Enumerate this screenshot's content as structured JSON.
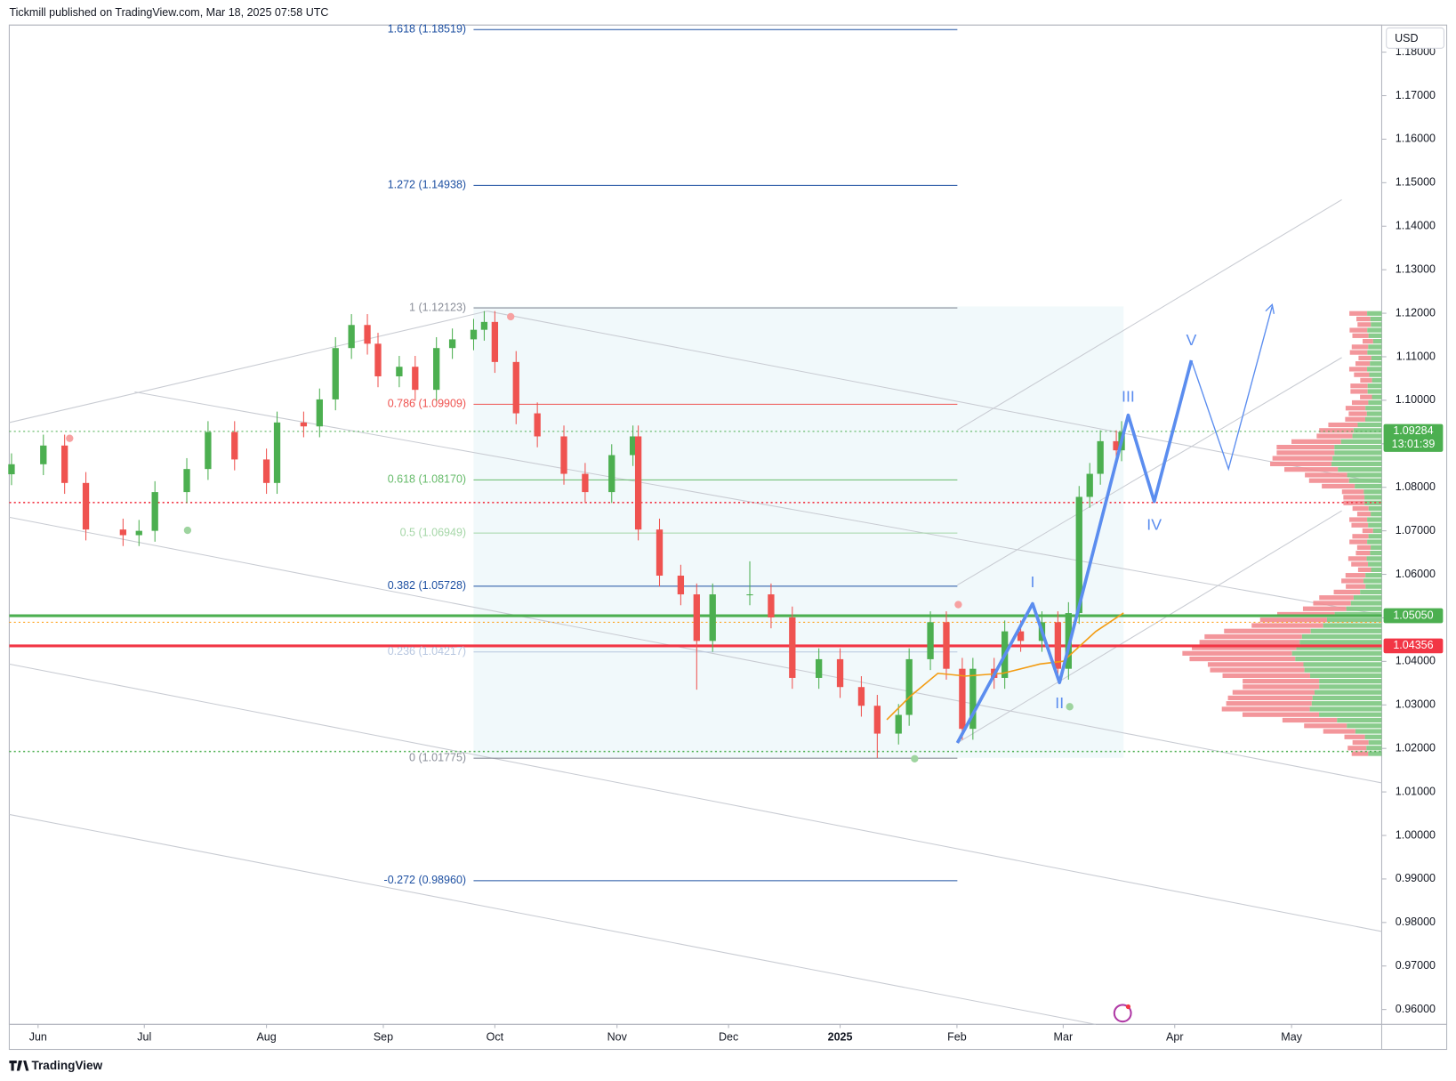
{
  "header": "Tickmill published on TradingView.com, Mar 18, 2025 07:58 UTC",
  "footer": "TradingView",
  "chart_data": {
    "type": "candlestick",
    "currency": "USD",
    "up_color": "#4caf50",
    "down_color": "#ef5350",
    "x": [
      -5,
      1,
      5,
      9,
      16,
      19,
      22,
      28,
      32,
      37,
      43,
      45,
      50,
      53,
      56,
      59,
      62,
      64,
      68,
      71,
      75,
      78,
      82,
      84,
      86,
      90,
      94,
      99,
      103,
      108,
      112,
      113,
      117,
      121,
      124,
      127,
      134,
      138,
      142,
      147,
      151,
      155,
      158,
      162,
      164,
      168,
      171,
      174,
      176,
      180,
      182,
      185,
      189,
      192,
      194,
      196,
      198,
      200,
      203,
      204
    ],
    "open": [
      1.083,
      1.0853,
      1.0896,
      1.081,
      1.0703,
      1.069,
      1.07,
      1.0789,
      1.0842,
      1.0927,
      1.0864,
      1.081,
      1.0949,
      1.094,
      1.1002,
      1.112,
      1.1173,
      1.113,
      1.1055,
      1.1077,
      1.1024,
      1.112,
      1.114,
      1.1162,
      1.118,
      1.1088,
      1.097,
      1.0917,
      1.0831,
      1.0789,
      1.0874,
      1.0917,
      1.0703,
      1.0597,
      1.0554,
      1.0447,
      1.0554,
      1.0554,
      1.0501,
      1.0362,
      1.0405,
      1.0341,
      1.0298,
      1.0234,
      1.0277,
      1.0405,
      1.049,
      1.0383,
      1.0245,
      1.0383,
      1.0362,
      1.0469,
      1.0447,
      1.049,
      1.0383,
      1.0511,
      1.0778,
      1.0831,
      1.0906,
      1.0885
    ],
    "high": [
      1.0878,
      1.0921,
      1.0921,
      1.0835,
      1.0728,
      1.0725,
      1.0814,
      1.0867,
      1.0952,
      1.0952,
      1.0889,
      1.0974,
      1.0974,
      1.1027,
      1.1145,
      1.1198,
      1.1198,
      1.1155,
      1.1102,
      1.1102,
      1.1145,
      1.1165,
      1.1187,
      1.1205,
      1.1205,
      1.1113,
      1.0995,
      1.0942,
      1.0856,
      1.0899,
      1.0942,
      1.0942,
      1.0728,
      1.0622,
      1.0579,
      1.0579,
      1.063,
      1.0579,
      1.0526,
      1.043,
      1.043,
      1.0366,
      1.0323,
      1.0302,
      1.043,
      1.0515,
      1.0515,
      1.0408,
      1.0408,
      1.0408,
      1.0494,
      1.0494,
      1.0515,
      1.0515,
      1.0536,
      1.0803,
      1.0856,
      1.0931,
      1.0931,
      1.0952
    ],
    "low": [
      1.0805,
      1.0828,
      1.0785,
      1.0678,
      1.0665,
      1.0665,
      1.0675,
      1.0764,
      1.0817,
      1.0839,
      1.0785,
      1.0785,
      1.0915,
      1.0915,
      1.0977,
      1.1095,
      1.1105,
      1.103,
      1.103,
      1.0999,
      1.0999,
      1.1095,
      1.1115,
      1.1137,
      1.1063,
      1.0945,
      1.0892,
      1.0806,
      1.0764,
      1.0764,
      1.0849,
      1.0678,
      1.0572,
      1.0529,
      1.0335,
      1.0422,
      1.0529,
      1.0476,
      1.0337,
      1.0337,
      1.0316,
      1.0273,
      1.0178,
      1.0209,
      1.0252,
      1.038,
      1.0358,
      1.022,
      1.022,
      1.0337,
      1.0337,
      1.0422,
      1.0422,
      1.0358,
      1.0358,
      1.0486,
      1.0753,
      1.0806,
      1.086,
      1.086
    ],
    "close": [
      1.0853,
      1.0896,
      1.081,
      1.0703,
      1.069,
      1.07,
      1.0789,
      1.0842,
      1.0927,
      1.0864,
      1.081,
      1.0949,
      1.094,
      1.1002,
      1.112,
      1.1173,
      1.113,
      1.1055,
      1.1077,
      1.1024,
      1.112,
      1.114,
      1.1162,
      1.118,
      1.1088,
      1.097,
      1.0917,
      1.0831,
      1.0789,
      1.0874,
      1.0917,
      1.0703,
      1.0597,
      1.0554,
      1.0447,
      1.0554,
      1.0554,
      1.0501,
      1.0362,
      1.0405,
      1.0341,
      1.0298,
      1.0234,
      1.0277,
      1.0405,
      1.049,
      1.0383,
      1.0245,
      1.0383,
      1.0362,
      1.0469,
      1.0447,
      1.049,
      1.0383,
      1.0511,
      1.0778,
      1.0831,
      1.0906,
      1.0885,
      1.0927
    ],
    "xlim": [
      -5.42,
      252.97
    ],
    "xticks": [
      {
        "value": 0,
        "label": "Jun"
      },
      {
        "value": 20,
        "label": "Jul"
      },
      {
        "value": 43,
        "label": "Aug"
      },
      {
        "value": 65,
        "label": "Sep"
      },
      {
        "value": 86,
        "label": "Oct"
      },
      {
        "value": 109,
        "label": "Nov"
      },
      {
        "value": 130,
        "label": "Dec"
      },
      {
        "value": 151,
        "label": "2025"
      },
      {
        "value": 173,
        "label": "Feb"
      },
      {
        "value": 193,
        "label": "Mar"
      },
      {
        "value": 214,
        "label": "Apr"
      },
      {
        "value": 236,
        "label": "May"
      }
    ],
    "ylim": [
      0.95659,
      1.18622
    ],
    "yticks": [
      {
        "value": 0.96,
        "label": "0.96000"
      },
      {
        "value": 0.97,
        "label": "0.97000"
      },
      {
        "value": 0.98,
        "label": "0.98000"
      },
      {
        "value": 0.99,
        "label": "0.99000"
      },
      {
        "value": 1.0,
        "label": "1.00000"
      },
      {
        "value": 1.01,
        "label": "1.01000"
      },
      {
        "value": 1.02,
        "label": "1.02000"
      },
      {
        "value": 1.03,
        "label": "1.03000"
      },
      {
        "value": 1.04,
        "label": "1.04000"
      },
      {
        "value": 1.05,
        "label": "1.05000"
      },
      {
        "value": 1.06,
        "label": "1.06000"
      },
      {
        "value": 1.07,
        "label": "1.07000"
      },
      {
        "value": 1.08,
        "label": "1.08000"
      },
      {
        "value": 1.09,
        "label": "1.09000"
      },
      {
        "value": 1.1,
        "label": "1.10000"
      },
      {
        "value": 1.11,
        "label": "1.11000"
      },
      {
        "value": 1.12,
        "label": "1.12000"
      },
      {
        "value": 1.13,
        "label": "1.13000"
      },
      {
        "value": 1.14,
        "label": "1.14000"
      },
      {
        "value": 1.15,
        "label": "1.15000"
      },
      {
        "value": 1.16,
        "label": "1.16000"
      },
      {
        "value": 1.17,
        "label": "1.17000"
      },
      {
        "value": 1.18,
        "label": "1.18000"
      }
    ],
    "fib_levels": [
      {
        "label": "1.618 (1.18519)",
        "value": 1.18519,
        "color": "#1e50a2"
      },
      {
        "label": "1.272 (1.14938)",
        "value": 1.14938,
        "color": "#1e50a2"
      },
      {
        "label": "1 (1.12123)",
        "value": 1.12123,
        "color": "#8a8e99"
      },
      {
        "label": "0.786 (1.09909)",
        "value": 1.09909,
        "color": "#ef5350"
      },
      {
        "label": "0.618 (1.08170)",
        "value": 1.0817,
        "color": "#66bb6a"
      },
      {
        "label": "0.5 (1.06949)",
        "value": 1.06949,
        "color": "#a5d6a7"
      },
      {
        "label": "0.382 (1.05728)",
        "value": 1.05728,
        "color": "#1e50a2"
      },
      {
        "label": "0.236 (1.04217)",
        "value": 1.04217,
        "color": "#b8c7e0"
      },
      {
        "label": "0 (1.01775)",
        "value": 1.01775,
        "color": "#8a8e99"
      },
      {
        "label": "-0.272 (0.98960)",
        "value": 0.9896,
        "color": "#1e50a2"
      }
    ],
    "horizontal_lines": [
      {
        "value": 1.09284,
        "color": "#4caf50",
        "style": "dotted",
        "width": 1
      },
      {
        "value": 1.0765,
        "color": "#f23645",
        "style": "dotted",
        "width": 1.5
      },
      {
        "value": 1.0505,
        "color": "#4caf50",
        "style": "solid",
        "width": 3
      },
      {
        "value": 1.049,
        "color": "#ff9800",
        "style": "dotted",
        "width": 1
      },
      {
        "value": 1.04356,
        "color": "#f23645",
        "style": "solid",
        "width": 3
      },
      {
        "value": 1.0193,
        "color": "#4caf50",
        "style": "dotted",
        "width": 1.5
      }
    ],
    "price_tags": [
      {
        "value": 1.09284,
        "label": "1.09284",
        "sublabel": "13:01:39",
        "color": "#4caf50"
      },
      {
        "value": 1.0505,
        "label": "1.05050",
        "color": "#4caf50"
      },
      {
        "value": 1.04356,
        "label": "1.04356",
        "color": "#f23645"
      }
    ],
    "wave_labels": [
      "I",
      "II",
      "III",
      "IV",
      "V"
    ]
  }
}
